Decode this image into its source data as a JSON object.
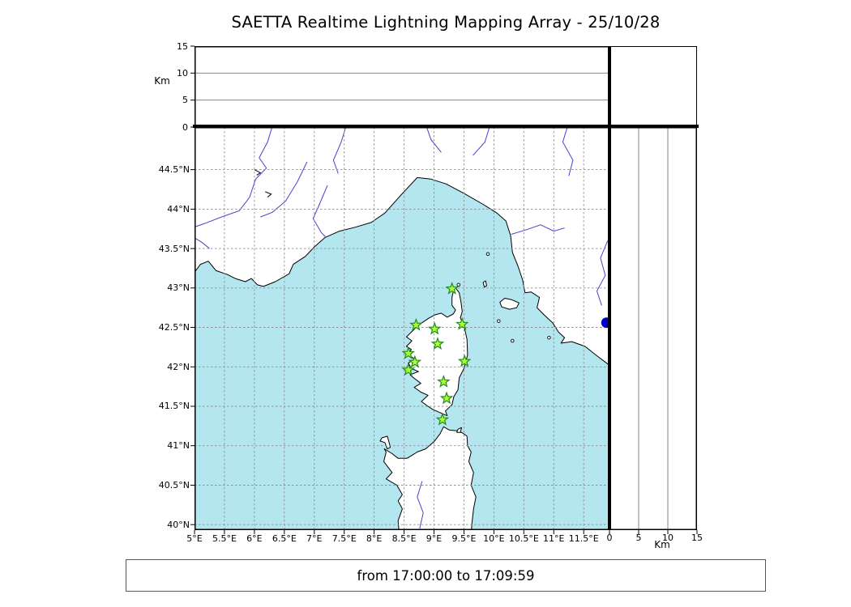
{
  "title": "SAETTA Realtime Lightning Mapping Array - 25/10/28",
  "status_text": "from 17:00:00 to 17:09:59",
  "colors": {
    "sea": "#b4e6f0",
    "land": "#ffffff",
    "coast": "#000000",
    "river": "#4444cc",
    "grid": "#8f8f8f",
    "star_fill": "#adff2f",
    "star_edge": "#228b22",
    "dot": "#0000cd"
  },
  "chart_data": {
    "type": "scatter",
    "title": "SAETTA Realtime Lightning Mapping Array - 25/10/28",
    "time_window": "from 17:00:00 to 17:09:59",
    "grid": true,
    "x": {
      "axis": "longitude",
      "min": 5.0,
      "max": 11.93,
      "ticks": [
        {
          "label": "5°E",
          "value": 5.0
        },
        {
          "label": "5.5°E",
          "value": 5.5
        },
        {
          "label": "6°E",
          "value": 6.0
        },
        {
          "label": "6.5°E",
          "value": 6.5
        },
        {
          "label": "7°E",
          "value": 7.0
        },
        {
          "label": "7.5°E",
          "value": 7.5
        },
        {
          "label": "8°E",
          "value": 8.0
        },
        {
          "label": "8.5°E",
          "value": 8.5
        },
        {
          "label": "9°E",
          "value": 9.0
        },
        {
          "label": "9.5°E",
          "value": 9.5
        },
        {
          "label": "10°E",
          "value": 10.0
        },
        {
          "label": "10.5°E",
          "value": 10.5
        },
        {
          "label": "11°E",
          "value": 11.0
        },
        {
          "label": "11.5°E",
          "value": 11.5
        }
      ]
    },
    "y": {
      "axis": "latitude",
      "min": 39.93,
      "max": 45.04,
      "ticks": [
        {
          "label": "44.5°N",
          "value": 44.5
        },
        {
          "label": "44°N",
          "value": 44.0
        },
        {
          "label": "43.5°N",
          "value": 43.5
        },
        {
          "label": "43°N",
          "value": 43.0
        },
        {
          "label": "42.5°N",
          "value": 42.5
        },
        {
          "label": "42°N",
          "value": 42.0
        },
        {
          "label": "41.5°N",
          "value": 41.5
        },
        {
          "label": "41°N",
          "value": 41.0
        },
        {
          "label": "40.5°N",
          "value": 40.5
        },
        {
          "label": "40°N",
          "value": 40.0
        }
      ]
    },
    "altitude": {
      "label": "Km",
      "min": 0,
      "max": 15,
      "ticks": [
        {
          "label": "0",
          "value": 0
        },
        {
          "label": "5",
          "value": 5
        },
        {
          "label": "10",
          "value": 10
        },
        {
          "label": "15",
          "value": 15
        }
      ],
      "gridlines": [
        5,
        10
      ]
    },
    "stations": [
      {
        "lon": 9.3,
        "lat": 42.99
      },
      {
        "lon": 8.7,
        "lat": 42.53
      },
      {
        "lon": 9.01,
        "lat": 42.48
      },
      {
        "lon": 9.47,
        "lat": 42.54
      },
      {
        "lon": 9.06,
        "lat": 42.29
      },
      {
        "lon": 8.57,
        "lat": 42.17
      },
      {
        "lon": 9.51,
        "lat": 42.07
      },
      {
        "lon": 8.68,
        "lat": 42.06
      },
      {
        "lon": 8.57,
        "lat": 41.96
      },
      {
        "lon": 9.16,
        "lat": 41.81
      },
      {
        "lon": 9.21,
        "lat": 41.6
      },
      {
        "lon": 9.14,
        "lat": 41.33
      }
    ],
    "event_marker": {
      "lon": 11.88,
      "lat": 42.56
    },
    "lightning_points": []
  }
}
